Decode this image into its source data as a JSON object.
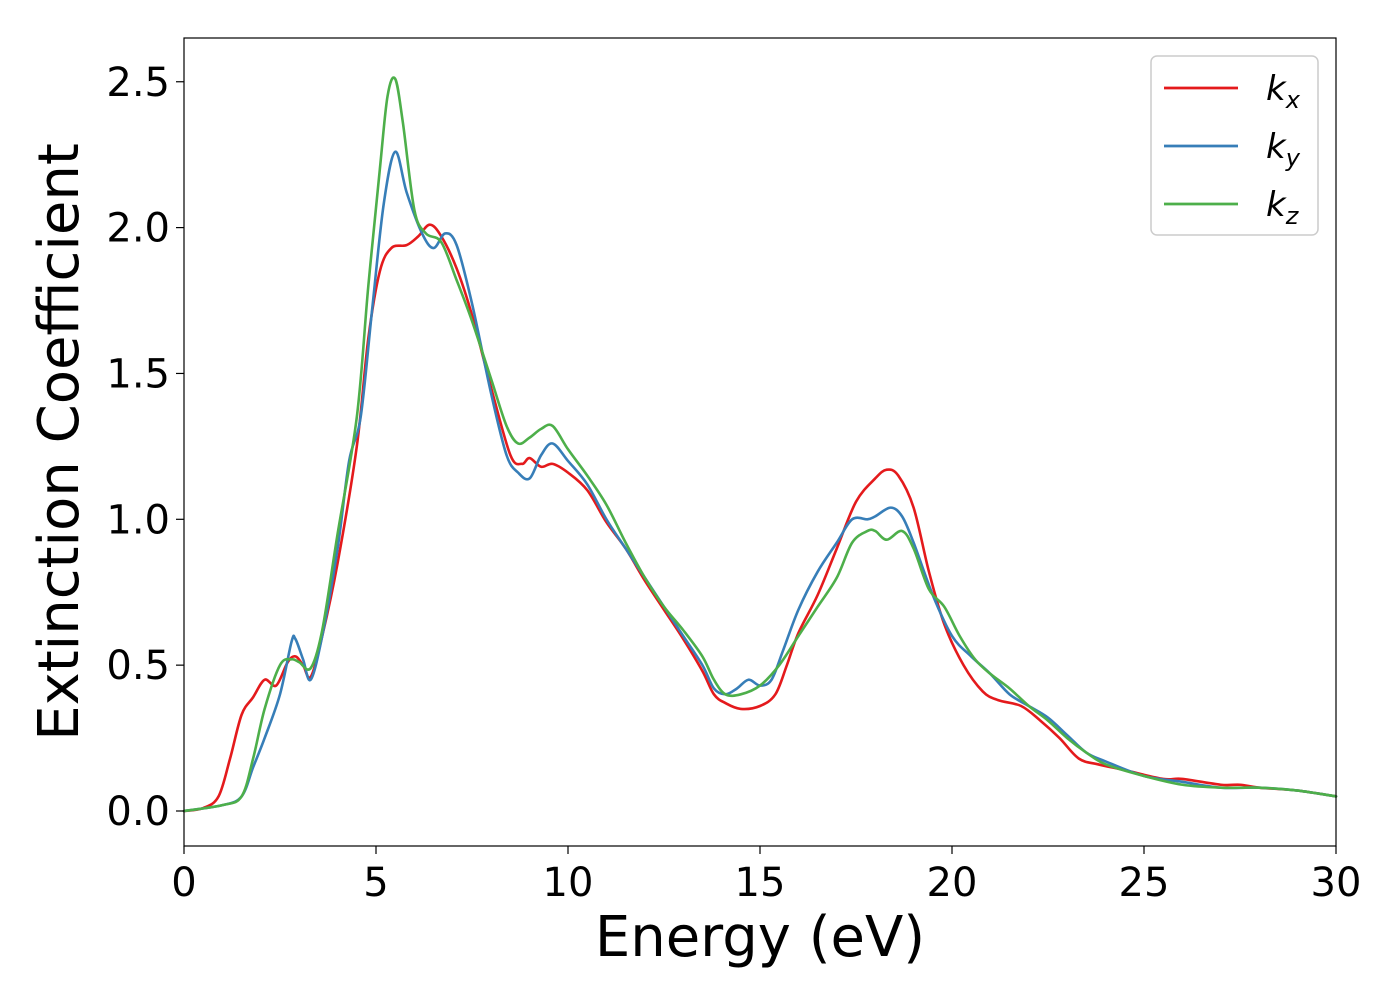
{
  "chart_data": {
    "type": "line",
    "title": "",
    "xlabel": "Energy (eV)",
    "ylabel": "Extinction Coefficient",
    "xlim": [
      0,
      30
    ],
    "ylim": [
      -0.12,
      2.65
    ],
    "xticks": [
      0,
      5,
      10,
      15,
      20,
      25,
      30
    ],
    "xtick_labels": [
      "0",
      "5",
      "10",
      "15",
      "20",
      "25",
      "30"
    ],
    "yticks": [
      0.0,
      0.5,
      1.0,
      1.5,
      2.0,
      2.5
    ],
    "ytick_labels": [
      "0.0",
      "0.5",
      "1.0",
      "1.5",
      "2.0",
      "2.5"
    ],
    "grid": false,
    "legend_position": "top-right",
    "series": [
      {
        "name": "k",
        "subscript": "x",
        "color": "#e41a1c",
        "points": [
          [
            0,
            0
          ],
          [
            0.5,
            0.01
          ],
          [
            0.9,
            0.05
          ],
          [
            1.2,
            0.18
          ],
          [
            1.5,
            0.33
          ],
          [
            1.8,
            0.39
          ],
          [
            2.1,
            0.45
          ],
          [
            2.4,
            0.43
          ],
          [
            2.7,
            0.51
          ],
          [
            2.9,
            0.53
          ],
          [
            3.1,
            0.5
          ],
          [
            3.3,
            0.46
          ],
          [
            3.6,
            0.6
          ],
          [
            4.0,
            0.85
          ],
          [
            4.5,
            1.25
          ],
          [
            4.8,
            1.62
          ],
          [
            5.1,
            1.85
          ],
          [
            5.4,
            1.93
          ],
          [
            5.8,
            1.94
          ],
          [
            6.1,
            1.97
          ],
          [
            6.4,
            2.01
          ],
          [
            6.7,
            1.97
          ],
          [
            7.1,
            1.86
          ],
          [
            7.5,
            1.7
          ],
          [
            8.0,
            1.45
          ],
          [
            8.5,
            1.22
          ],
          [
            8.8,
            1.19
          ],
          [
            9.0,
            1.21
          ],
          [
            9.3,
            1.18
          ],
          [
            9.6,
            1.19
          ],
          [
            10.0,
            1.16
          ],
          [
            10.5,
            1.1
          ],
          [
            11.0,
            0.99
          ],
          [
            11.5,
            0.9
          ],
          [
            12.0,
            0.79
          ],
          [
            12.5,
            0.69
          ],
          [
            13.0,
            0.59
          ],
          [
            13.5,
            0.48
          ],
          [
            13.8,
            0.4
          ],
          [
            14.1,
            0.37
          ],
          [
            14.5,
            0.35
          ],
          [
            15.0,
            0.36
          ],
          [
            15.4,
            0.4
          ],
          [
            15.7,
            0.5
          ],
          [
            16.0,
            0.61
          ],
          [
            16.5,
            0.74
          ],
          [
            17.0,
            0.9
          ],
          [
            17.5,
            1.06
          ],
          [
            18.0,
            1.14
          ],
          [
            18.3,
            1.17
          ],
          [
            18.6,
            1.15
          ],
          [
            19.0,
            1.04
          ],
          [
            19.4,
            0.82
          ],
          [
            19.8,
            0.64
          ],
          [
            20.3,
            0.5
          ],
          [
            20.8,
            0.41
          ],
          [
            21.2,
            0.38
          ],
          [
            21.8,
            0.36
          ],
          [
            22.3,
            0.31
          ],
          [
            22.8,
            0.25
          ],
          [
            23.3,
            0.18
          ],
          [
            23.8,
            0.16
          ],
          [
            24.5,
            0.14
          ],
          [
            25.5,
            0.11
          ],
          [
            26.0,
            0.11
          ],
          [
            27.0,
            0.09
          ],
          [
            27.5,
            0.09
          ],
          [
            28.0,
            0.08
          ],
          [
            29.0,
            0.07
          ],
          [
            30.0,
            0.05
          ]
        ]
      },
      {
        "name": "k",
        "subscript": "y",
        "color": "#377eb8",
        "points": [
          [
            0,
            0
          ],
          [
            1.0,
            0.02
          ],
          [
            1.5,
            0.05
          ],
          [
            1.8,
            0.15
          ],
          [
            2.1,
            0.25
          ],
          [
            2.5,
            0.4
          ],
          [
            2.8,
            0.58
          ],
          [
            2.9,
            0.59
          ],
          [
            3.1,
            0.52
          ],
          [
            3.3,
            0.45
          ],
          [
            3.6,
            0.6
          ],
          [
            4.0,
            0.9
          ],
          [
            4.3,
            1.2
          ],
          [
            4.6,
            1.35
          ],
          [
            4.9,
            1.72
          ],
          [
            5.2,
            2.08
          ],
          [
            5.5,
            2.26
          ],
          [
            5.8,
            2.12
          ],
          [
            6.2,
            1.98
          ],
          [
            6.5,
            1.93
          ],
          [
            6.8,
            1.98
          ],
          [
            7.1,
            1.94
          ],
          [
            7.5,
            1.74
          ],
          [
            8.0,
            1.43
          ],
          [
            8.4,
            1.22
          ],
          [
            8.7,
            1.16
          ],
          [
            9.0,
            1.14
          ],
          [
            9.3,
            1.22
          ],
          [
            9.6,
            1.26
          ],
          [
            10.0,
            1.2
          ],
          [
            10.5,
            1.12
          ],
          [
            11.0,
            1.0
          ],
          [
            11.5,
            0.9
          ],
          [
            12.0,
            0.8
          ],
          [
            12.5,
            0.7
          ],
          [
            13.0,
            0.6
          ],
          [
            13.5,
            0.5
          ],
          [
            13.8,
            0.42
          ],
          [
            14.1,
            0.4
          ],
          [
            14.4,
            0.42
          ],
          [
            14.7,
            0.45
          ],
          [
            15.0,
            0.43
          ],
          [
            15.3,
            0.45
          ],
          [
            15.6,
            0.55
          ],
          [
            16.0,
            0.69
          ],
          [
            16.5,
            0.82
          ],
          [
            17.0,
            0.92
          ],
          [
            17.4,
            1.0
          ],
          [
            17.8,
            1.0
          ],
          [
            18.0,
            1.01
          ],
          [
            18.4,
            1.04
          ],
          [
            18.7,
            1.01
          ],
          [
            19.0,
            0.92
          ],
          [
            19.5,
            0.74
          ],
          [
            20.0,
            0.6
          ],
          [
            20.5,
            0.53
          ],
          [
            21.0,
            0.47
          ],
          [
            21.5,
            0.4
          ],
          [
            22.0,
            0.36
          ],
          [
            22.5,
            0.32
          ],
          [
            23.0,
            0.26
          ],
          [
            23.5,
            0.2
          ],
          [
            24.0,
            0.17
          ],
          [
            25.0,
            0.12
          ],
          [
            26.0,
            0.1
          ],
          [
            27.0,
            0.08
          ],
          [
            28.0,
            0.08
          ],
          [
            29.0,
            0.07
          ],
          [
            30.0,
            0.05
          ]
        ]
      },
      {
        "name": "k",
        "subscript": "z",
        "color": "#4daf4a",
        "points": [
          [
            0,
            0
          ],
          [
            1.0,
            0.02
          ],
          [
            1.5,
            0.05
          ],
          [
            1.8,
            0.18
          ],
          [
            2.1,
            0.35
          ],
          [
            2.5,
            0.5
          ],
          [
            2.8,
            0.52
          ],
          [
            3.0,
            0.51
          ],
          [
            3.3,
            0.49
          ],
          [
            3.6,
            0.62
          ],
          [
            4.0,
            0.95
          ],
          [
            4.5,
            1.35
          ],
          [
            4.8,
            1.8
          ],
          [
            5.1,
            2.2
          ],
          [
            5.3,
            2.45
          ],
          [
            5.5,
            2.51
          ],
          [
            5.7,
            2.36
          ],
          [
            6.0,
            2.06
          ],
          [
            6.3,
            1.98
          ],
          [
            6.7,
            1.95
          ],
          [
            7.1,
            1.82
          ],
          [
            7.5,
            1.68
          ],
          [
            8.0,
            1.48
          ],
          [
            8.4,
            1.32
          ],
          [
            8.7,
            1.26
          ],
          [
            9.0,
            1.28
          ],
          [
            9.3,
            1.31
          ],
          [
            9.6,
            1.32
          ],
          [
            10.0,
            1.24
          ],
          [
            10.5,
            1.15
          ],
          [
            11.0,
            1.05
          ],
          [
            11.5,
            0.92
          ],
          [
            12.0,
            0.8
          ],
          [
            12.5,
            0.7
          ],
          [
            13.0,
            0.62
          ],
          [
            13.5,
            0.53
          ],
          [
            13.8,
            0.45
          ],
          [
            14.1,
            0.4
          ],
          [
            14.5,
            0.4
          ],
          [
            15.0,
            0.43
          ],
          [
            15.5,
            0.5
          ],
          [
            16.0,
            0.6
          ],
          [
            16.5,
            0.7
          ],
          [
            17.0,
            0.8
          ],
          [
            17.4,
            0.92
          ],
          [
            17.8,
            0.96
          ],
          [
            18.0,
            0.96
          ],
          [
            18.3,
            0.93
          ],
          [
            18.7,
            0.96
          ],
          [
            19.0,
            0.9
          ],
          [
            19.4,
            0.76
          ],
          [
            19.8,
            0.7
          ],
          [
            20.2,
            0.6
          ],
          [
            20.6,
            0.52
          ],
          [
            21.0,
            0.47
          ],
          [
            21.5,
            0.42
          ],
          [
            22.0,
            0.36
          ],
          [
            22.5,
            0.31
          ],
          [
            23.0,
            0.25
          ],
          [
            23.5,
            0.2
          ],
          [
            24.0,
            0.16
          ],
          [
            25.0,
            0.12
          ],
          [
            26.0,
            0.09
          ],
          [
            27.0,
            0.08
          ],
          [
            28.0,
            0.08
          ],
          [
            29.0,
            0.07
          ],
          [
            30.0,
            0.05
          ]
        ]
      }
    ]
  }
}
